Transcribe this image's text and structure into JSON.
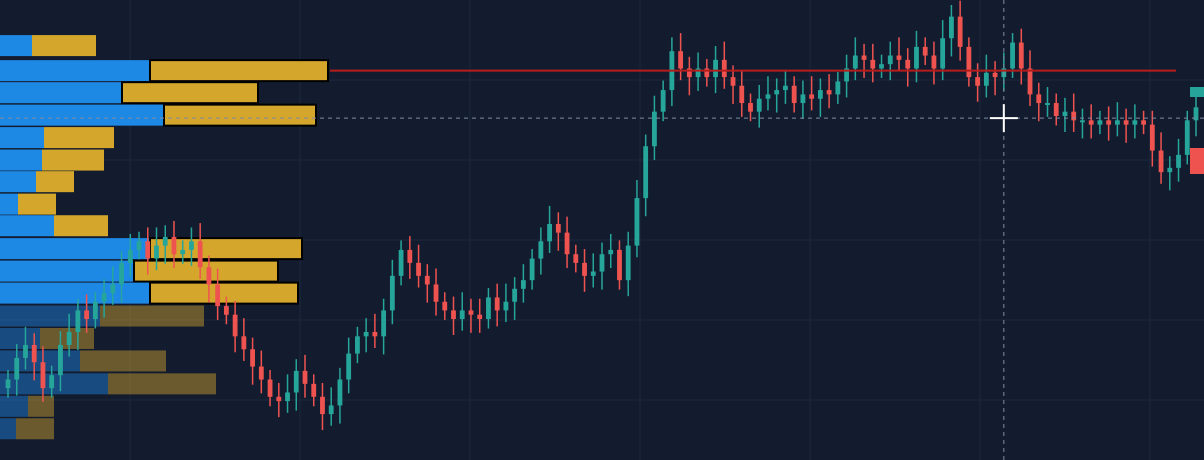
{
  "chart_data": {
    "type": "candlestick",
    "title": "",
    "xlabel": "",
    "ylabel": "",
    "ylim": [
      0,
      100
    ],
    "grid": true,
    "colors": {
      "background": "#131c2e",
      "up": "#26a69a",
      "down": "#ef5350",
      "volume_buy": "#1e88e5",
      "volume_sell": "#d4a72c",
      "resistance_line": "#b71c1c",
      "crosshair": "#7f8aa3"
    },
    "resistance_level": 85.5,
    "crosshair": {
      "price": 74.5,
      "bar_index": 114
    },
    "volume_profile": [
      {
        "price": 91.3,
        "buy": 32,
        "sell": 64
      },
      {
        "price": 85.5,
        "buy": 150,
        "sell": 178
      },
      {
        "price": 80.4,
        "buy": 122,
        "sell": 136
      },
      {
        "price": 75.2,
        "buy": 164,
        "sell": 152
      },
      {
        "price": 70.0,
        "buy": 44,
        "sell": 70
      },
      {
        "price": 64.8,
        "buy": 42,
        "sell": 62
      },
      {
        "price": 59.8,
        "buy": 36,
        "sell": 38
      },
      {
        "price": 54.6,
        "buy": 18,
        "sell": 38
      },
      {
        "price": 49.6,
        "buy": 54,
        "sell": 54
      },
      {
        "price": 44.3,
        "buy": 150,
        "sell": 152
      },
      {
        "price": 39.1,
        "buy": 134,
        "sell": 144
      },
      {
        "price": 34.0,
        "buy": 150,
        "sell": 148
      },
      {
        "price": 28.7,
        "buy": 100,
        "sell": 104
      },
      {
        "price": 23.5,
        "buy": 40,
        "sell": 54
      },
      {
        "price": 18.3,
        "buy": 80,
        "sell": 86
      },
      {
        "price": 13.0,
        "buy": 108,
        "sell": 108
      },
      {
        "price": 7.8,
        "buy": 28,
        "sell": 26
      },
      {
        "price": 2.6,
        "buy": 16,
        "sell": 38
      }
    ],
    "close": [
      14,
      19,
      22,
      18,
      12,
      15,
      22,
      25,
      30,
      28,
      32,
      34,
      36,
      41,
      44,
      46,
      42,
      45,
      47,
      43,
      44,
      46,
      40,
      36,
      31,
      29,
      24,
      21,
      17,
      14,
      10,
      9,
      11,
      16,
      13,
      10,
      6,
      8,
      14,
      20,
      24,
      25,
      24,
      30,
      38,
      44,
      41,
      38,
      36,
      32,
      30,
      28,
      30,
      29,
      28,
      33,
      30,
      32,
      35,
      37,
      42,
      46,
      50,
      48,
      43,
      41,
      38,
      39,
      43,
      44,
      37,
      45,
      56,
      68,
      76,
      81,
      90,
      86,
      84,
      86,
      84,
      88,
      84,
      82,
      78,
      76,
      79,
      80,
      81,
      82,
      78,
      80,
      79,
      81,
      80,
      83,
      86,
      89,
      88,
      86,
      87,
      89,
      88,
      86,
      91,
      89,
      86,
      93,
      98,
      91,
      84,
      82,
      85,
      84,
      86,
      92,
      86,
      80,
      78,
      78,
      75,
      76,
      74,
      74,
      73,
      74,
      73,
      74,
      73,
      74,
      73,
      67,
      62,
      63,
      66,
      74,
      77
    ]
  }
}
